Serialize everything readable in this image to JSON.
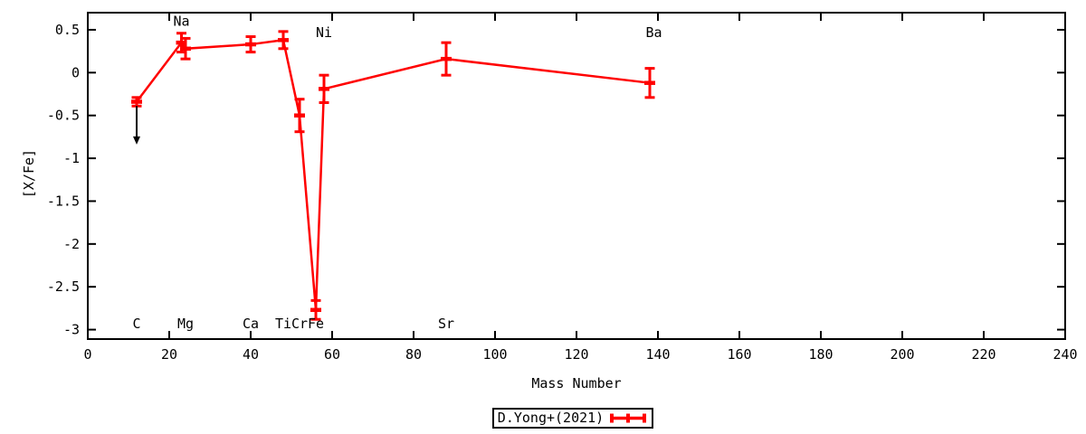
{
  "chart_data": {
    "type": "scatter",
    "title": "",
    "xlabel": "Mass Number",
    "ylabel": "[X/Fe]",
    "xlim": [
      0,
      240
    ],
    "ylim": [
      -3.11,
      0.7
    ],
    "xticks": [
      0,
      20,
      40,
      60,
      80,
      100,
      120,
      140,
      160,
      180,
      200,
      220,
      240
    ],
    "yticks": [
      0.5,
      0,
      -0.5,
      -1,
      -1.5,
      -2,
      -2.5,
      -3
    ],
    "ytick_labels": [
      "0.5",
      "0",
      "-0.5",
      "-1",
      "-1.5",
      "-2",
      "-2.5",
      "-3"
    ],
    "grid": false,
    "legend_position": "below-plot-center",
    "legend": {
      "label": "D.Yong+(2021)"
    },
    "series": [
      {
        "name": "D.Yong+(2021)",
        "color": "#ff0000",
        "style": "linespoints-with-errorbars",
        "points": [
          {
            "element": "C",
            "mass": 12,
            "value": -0.34,
            "err": 0.05,
            "upper_limit": true,
            "arrow_to": -0.84
          },
          {
            "element": "Na",
            "mass": 23,
            "value": 0.35,
            "err": 0.11
          },
          {
            "element": "Mg",
            "mass": 24,
            "value": 0.28,
            "err": 0.12
          },
          {
            "element": "Ca",
            "mass": 40,
            "value": 0.33,
            "err": 0.09
          },
          {
            "element": "Ti",
            "mass": 48,
            "value": 0.38,
            "err": 0.1
          },
          {
            "element": "Cr",
            "mass": 52,
            "value": -0.5,
            "err": 0.19
          },
          {
            "element": "Fe",
            "mass": 56,
            "value": -2.77,
            "err": 0.11
          },
          {
            "element": "Ni",
            "mass": 58,
            "value": -0.19,
            "err": 0.16
          },
          {
            "element": "Sr",
            "mass": 88,
            "value": 0.16,
            "err": 0.19
          },
          {
            "element": "Ba",
            "mass": 138,
            "value": -0.12,
            "err": 0.17
          }
        ]
      }
    ],
    "annotations": [
      {
        "text": "C",
        "x": 12,
        "y": -2.93
      },
      {
        "text": "Na",
        "x": 23,
        "y": 0.6
      },
      {
        "text": "Mg",
        "x": 24,
        "y": -2.93
      },
      {
        "text": "Ca",
        "x": 40,
        "y": -2.93
      },
      {
        "text": "Ti",
        "x": 48,
        "y": -2.93
      },
      {
        "text": "Cr",
        "x": 52,
        "y": -2.93
      },
      {
        "text": "Fe",
        "x": 56,
        "y": -2.93
      },
      {
        "text": "Ni",
        "x": 58,
        "y": 0.47
      },
      {
        "text": "Sr",
        "x": 88,
        "y": -2.93
      },
      {
        "text": "Ba",
        "x": 139,
        "y": 0.47
      }
    ],
    "colors": {
      "series": "#ff0000",
      "limit_arrow": "#000000",
      "axis": "#000000",
      "background": "#ffffff"
    }
  }
}
